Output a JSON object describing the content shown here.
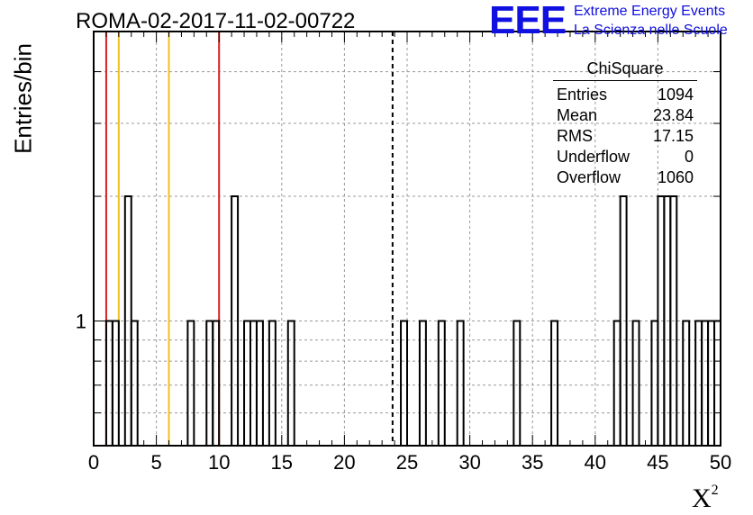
{
  "chart_data": {
    "type": "bar",
    "title": "ROMA-02-2017-11-02-00722",
    "xlabel": "X",
    "xlabel_sup": "2",
    "ylabel": "Entries/bin",
    "xlim": [
      0,
      50
    ],
    "ylim": [
      0.5,
      5
    ],
    "yscale": "log",
    "grid": true,
    "x_ticks": [
      "0",
      "5",
      "10",
      "15",
      "20",
      "25",
      "30",
      "35",
      "40",
      "45",
      "50"
    ],
    "y_tick_labels": [
      "1"
    ],
    "bin_width": 0.5,
    "bins": [
      {
        "x": 1.0,
        "count": 1
      },
      {
        "x": 1.5,
        "count": 1
      },
      {
        "x": 2.5,
        "count": 2
      },
      {
        "x": 3.0,
        "count": 1
      },
      {
        "x": 7.5,
        "count": 1
      },
      {
        "x": 9.0,
        "count": 1
      },
      {
        "x": 9.5,
        "count": 1
      },
      {
        "x": 11.0,
        "count": 2
      },
      {
        "x": 12.0,
        "count": 1
      },
      {
        "x": 12.5,
        "count": 1
      },
      {
        "x": 13.0,
        "count": 1
      },
      {
        "x": 14.0,
        "count": 1
      },
      {
        "x": 15.5,
        "count": 1
      },
      {
        "x": 24.5,
        "count": 1
      },
      {
        "x": 26.0,
        "count": 1
      },
      {
        "x": 27.5,
        "count": 1
      },
      {
        "x": 29.0,
        "count": 1
      },
      {
        "x": 33.5,
        "count": 1
      },
      {
        "x": 36.5,
        "count": 1
      },
      {
        "x": 41.5,
        "count": 1
      },
      {
        "x": 42.0,
        "count": 2
      },
      {
        "x": 43.0,
        "count": 1
      },
      {
        "x": 44.5,
        "count": 1
      },
      {
        "x": 45.0,
        "count": 2
      },
      {
        "x": 45.5,
        "count": 2
      },
      {
        "x": 46.0,
        "count": 2
      },
      {
        "x": 47.0,
        "count": 1
      },
      {
        "x": 48.0,
        "count": 1
      },
      {
        "x": 48.5,
        "count": 1
      },
      {
        "x": 49.0,
        "count": 1
      },
      {
        "x": 49.5,
        "count": 1
      }
    ],
    "reference_lines": [
      {
        "x": 1,
        "color": "#d62020",
        "style": "solid"
      },
      {
        "x": 2,
        "color": "#f0c020",
        "style": "solid"
      },
      {
        "x": 6,
        "color": "#f0c020",
        "style": "solid"
      },
      {
        "x": 10,
        "color": "#d62020",
        "style": "solid"
      },
      {
        "x": 23.84,
        "color": "#000000",
        "style": "dashed"
      }
    ]
  },
  "logo": {
    "mark": "EEE",
    "line1": "Extreme Energy Events",
    "line2": "La Scienza nelle Scuole"
  },
  "stats": {
    "title": "ChiSquare",
    "rows": [
      {
        "label": "Entries",
        "value": "1094"
      },
      {
        "label": "Mean",
        "value": "23.84"
      },
      {
        "label": "RMS",
        "value": "17.15"
      },
      {
        "label": "Underflow",
        "value": "0"
      },
      {
        "label": "Overflow",
        "value": "1060"
      }
    ]
  },
  "colors": {
    "logo": "#1010e0",
    "grid": "#9a9a9a"
  }
}
